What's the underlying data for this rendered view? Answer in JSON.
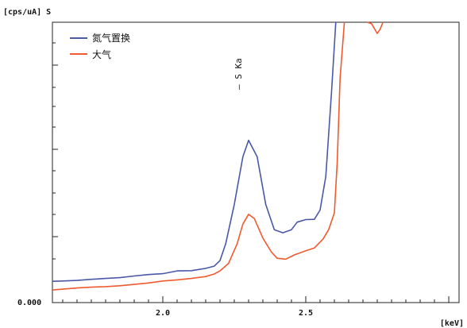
{
  "chart_data": {
    "type": "line",
    "ylabel": "[cps/uA] S",
    "xlabel": "[keV]",
    "xlim": [
      1.614,
      3.036
    ],
    "ylim": [
      0,
      100
    ],
    "x_ticks": [
      {
        "value": 2.0,
        "label": "2.0"
      },
      {
        "value": 2.5,
        "label": "2.5"
      }
    ],
    "y_ticks": [
      {
        "value": 0,
        "label": "0.000"
      }
    ],
    "legend_position": "top-left",
    "annotation": {
      "text": "— S Ka",
      "x": 2.29
    },
    "series": [
      {
        "name": "氮气置换",
        "color": "#4a58a8",
        "points": [
          [
            1.614,
            7.6
          ],
          [
            1.65,
            7.7
          ],
          [
            1.7,
            7.9
          ],
          [
            1.75,
            8.3
          ],
          [
            1.8,
            8.6
          ],
          [
            1.85,
            8.9
          ],
          [
            1.9,
            9.5
          ],
          [
            1.95,
            10.0
          ],
          [
            2.0,
            10.3
          ],
          [
            2.05,
            11.3
          ],
          [
            2.1,
            11.4
          ],
          [
            2.15,
            12.2
          ],
          [
            2.18,
            13.0
          ],
          [
            2.2,
            15.0
          ],
          [
            2.22,
            21.0
          ],
          [
            2.25,
            35.0
          ],
          [
            2.28,
            52.0
          ],
          [
            2.3,
            57.9
          ],
          [
            2.33,
            52.0
          ],
          [
            2.36,
            35.0
          ],
          [
            2.39,
            26.0
          ],
          [
            2.42,
            24.9
          ],
          [
            2.45,
            26.0
          ],
          [
            2.47,
            28.7
          ],
          [
            2.5,
            29.6
          ],
          [
            2.53,
            29.7
          ],
          [
            2.55,
            33.0
          ],
          [
            2.57,
            45.0
          ],
          [
            2.59,
            75.0
          ],
          [
            2.605,
            100.0
          ]
        ]
      },
      {
        "name": "大气",
        "color": "#ef5a2e",
        "points": [
          [
            1.614,
            4.5
          ],
          [
            1.65,
            4.8
          ],
          [
            1.7,
            5.2
          ],
          [
            1.75,
            5.5
          ],
          [
            1.8,
            5.7
          ],
          [
            1.85,
            6.0
          ],
          [
            1.9,
            6.5
          ],
          [
            1.95,
            7.0
          ],
          [
            2.0,
            7.7
          ],
          [
            2.05,
            8.1
          ],
          [
            2.1,
            8.6
          ],
          [
            2.15,
            9.3
          ],
          [
            2.18,
            10.2
          ],
          [
            2.2,
            11.3
          ],
          [
            2.23,
            14.0
          ],
          [
            2.26,
            21.0
          ],
          [
            2.28,
            28.0
          ],
          [
            2.3,
            31.5
          ],
          [
            2.32,
            30.0
          ],
          [
            2.35,
            23.0
          ],
          [
            2.38,
            18.0
          ],
          [
            2.4,
            15.8
          ],
          [
            2.43,
            15.5
          ],
          [
            2.46,
            17.0
          ],
          [
            2.5,
            18.5
          ],
          [
            2.53,
            19.5
          ],
          [
            2.56,
            22.6
          ],
          [
            2.58,
            26.0
          ],
          [
            2.6,
            32.0
          ],
          [
            2.61,
            50.0
          ],
          [
            2.62,
            80.0
          ],
          [
            2.635,
            100.0
          ]
        ]
      },
      {
        "name": "",
        "color": "#ef5a2e",
        "points": [
          [
            2.715,
            100.0
          ],
          [
            2.73,
            99.5
          ],
          [
            2.75,
            96.0
          ],
          [
            2.76,
            97.5
          ],
          [
            2.77,
            100.0
          ]
        ]
      }
    ]
  }
}
